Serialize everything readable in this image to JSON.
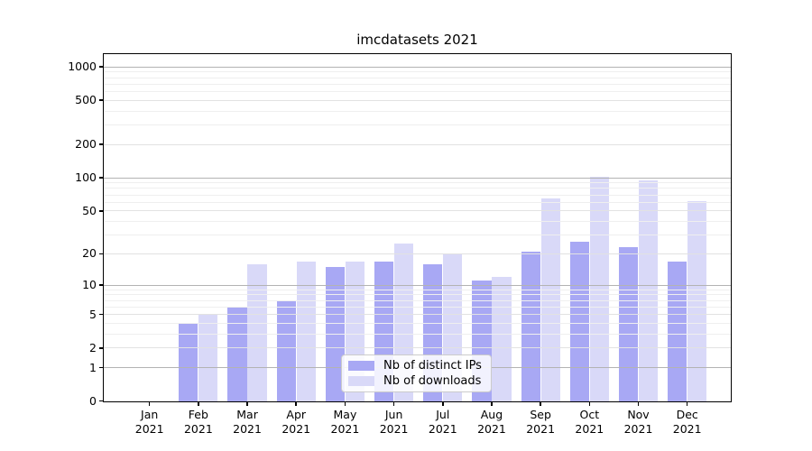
{
  "figure": {
    "background": "#ffffff"
  },
  "chart_data": {
    "type": "bar",
    "title": "imcdatasets 2021",
    "categories": [
      "Jan",
      "Feb",
      "Mar",
      "Apr",
      "May",
      "Jun",
      "Jul",
      "Aug",
      "Sep",
      "Oct",
      "Nov",
      "Dec"
    ],
    "year_label": "2021",
    "series": [
      {
        "name": "Nb of distinct IPs",
        "color": "#a8a8f4",
        "values": [
          0,
          4,
          6,
          7,
          15,
          17,
          16,
          11,
          21,
          26,
          23,
          17
        ]
      },
      {
        "name": "Nb of downloads",
        "color": "#d9d9f8",
        "values": [
          0,
          5,
          16,
          17,
          17,
          25,
          20,
          12,
          65,
          103,
          95,
          61
        ]
      }
    ],
    "y_scale": "log1p",
    "y_ticks": [
      0,
      1,
      2,
      5,
      10,
      20,
      50,
      100,
      200,
      500,
      1000
    ],
    "ylim": [
      0,
      1300
    ],
    "xlabel": "",
    "ylabel": "",
    "grid": "on",
    "legend_position": "lower center",
    "grid_colors": {
      "major": "#b3b3b3",
      "labeled_minor": "#e2e2e2",
      "minor": "#efefef"
    },
    "axis_color": "#000000",
    "text_color": "#000000"
  }
}
